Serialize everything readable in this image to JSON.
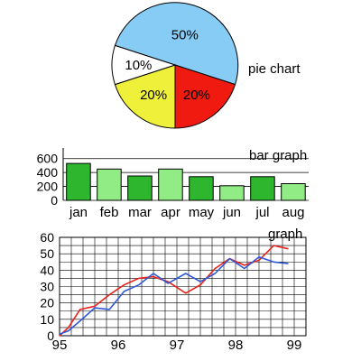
{
  "chart_data": [
    {
      "type": "pie",
      "title": "pie chart",
      "slices": [
        {
          "label": "50%",
          "value": 50,
          "color": "#87ccf5"
        },
        {
          "label": "20%",
          "value": 20,
          "color": "#f01a10"
        },
        {
          "label": "20%",
          "value": 20,
          "color": "#eef03a"
        },
        {
          "label": "10%",
          "value": 10,
          "color": "#ffffff"
        }
      ]
    },
    {
      "type": "bar",
      "title": "bar graph",
      "categories": [
        "jan",
        "feb",
        "mar",
        "apr",
        "may",
        "jun",
        "jul",
        "aug"
      ],
      "values": [
        530,
        450,
        350,
        450,
        340,
        210,
        340,
        240
      ],
      "ylim": [
        0,
        700
      ],
      "yticks": [
        0,
        200,
        400,
        600
      ],
      "colors": [
        "#2fb62f",
        "#92ec86",
        "#2fb62f",
        "#92ec86",
        "#2fb62f",
        "#92ec86",
        "#2fb62f",
        "#92ec86"
      ]
    },
    {
      "type": "line",
      "title": "graph",
      "xlim": [
        95,
        99.2
      ],
      "ylim": [
        0,
        60
      ],
      "xticks": [
        95,
        96,
        97,
        98,
        99
      ],
      "yticks": [
        0,
        10,
        20,
        30,
        40,
        50,
        60
      ],
      "grid": true,
      "series": [
        {
          "color": "#e8221a",
          "points": [
            [
              95,
              0
            ],
            [
              95.15,
              5
            ],
            [
              95.35,
              16
            ],
            [
              95.6,
              18
            ],
            [
              95.85,
              25
            ],
            [
              96.1,
              31
            ],
            [
              96.35,
              35
            ],
            [
              96.6,
              36
            ],
            [
              96.85,
              33
            ],
            [
              97.15,
              26
            ],
            [
              97.4,
              31
            ],
            [
              97.65,
              41
            ],
            [
              97.9,
              47
            ],
            [
              98.15,
              43
            ],
            [
              98.4,
              46
            ],
            [
              98.65,
              55
            ],
            [
              98.9,
              53
            ]
          ]
        },
        {
          "color": "#3159d6",
          "points": [
            [
              95,
              1
            ],
            [
              95.15,
              3
            ],
            [
              95.35,
              9
            ],
            [
              95.6,
              17
            ],
            [
              95.85,
              16
            ],
            [
              96.1,
              27
            ],
            [
              96.35,
              31
            ],
            [
              96.6,
              38
            ],
            [
              96.85,
              32
            ],
            [
              97.15,
              38
            ],
            [
              97.4,
              33
            ],
            [
              97.65,
              38
            ],
            [
              97.9,
              47
            ],
            [
              98.15,
              41
            ],
            [
              98.4,
              48
            ],
            [
              98.65,
              45
            ],
            [
              98.9,
              44
            ]
          ]
        }
      ]
    }
  ]
}
